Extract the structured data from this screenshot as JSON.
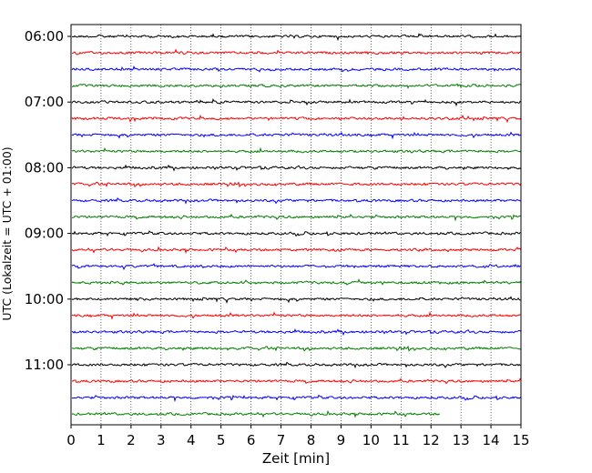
{
  "chart_data": {
    "type": "line",
    "title": "",
    "xlabel": "Zeit  [min]",
    "ylabel": "UTC (Lokalzeit = UTC + 01:00)",
    "xlim": [
      0,
      15
    ],
    "x_ticks": [
      "0",
      "1",
      "2",
      "3",
      "4",
      "5",
      "6",
      "7",
      "8",
      "9",
      "10",
      "11",
      "12",
      "13",
      "14",
      "15"
    ],
    "y_ticks": [
      "06:00",
      "07:00",
      "08:00",
      "09:00",
      "10:00",
      "11:00"
    ],
    "grid": "vertical dotted lines at each minute",
    "trace_interval_min": 15,
    "colors": [
      "#000000",
      "#ff0000",
      "#0000ff",
      "#007f00"
    ],
    "rows": [
      {
        "start": "06:00",
        "end_min": 15
      },
      {
        "start": "06:15",
        "end_min": 15
      },
      {
        "start": "06:30",
        "end_min": 15
      },
      {
        "start": "06:45",
        "end_min": 15
      },
      {
        "start": "07:00",
        "end_min": 15
      },
      {
        "start": "07:15",
        "end_min": 15
      },
      {
        "start": "07:30",
        "end_min": 15
      },
      {
        "start": "07:45",
        "end_min": 15
      },
      {
        "start": "08:00",
        "end_min": 15
      },
      {
        "start": "08:15",
        "end_min": 15
      },
      {
        "start": "08:30",
        "end_min": 15
      },
      {
        "start": "08:45",
        "end_min": 15
      },
      {
        "start": "09:00",
        "end_min": 15
      },
      {
        "start": "09:15",
        "end_min": 15
      },
      {
        "start": "09:30",
        "end_min": 15
      },
      {
        "start": "09:45",
        "end_min": 15
      },
      {
        "start": "10:00",
        "end_min": 15
      },
      {
        "start": "10:15",
        "end_min": 15
      },
      {
        "start": "10:30",
        "end_min": 15
      },
      {
        "start": "10:45",
        "end_min": 15
      },
      {
        "start": "11:00",
        "end_min": 15
      },
      {
        "start": "11:15",
        "end_min": 15
      },
      {
        "start": "11:30",
        "end_min": 15
      },
      {
        "start": "11:45",
        "end_min": 12.3
      }
    ]
  }
}
